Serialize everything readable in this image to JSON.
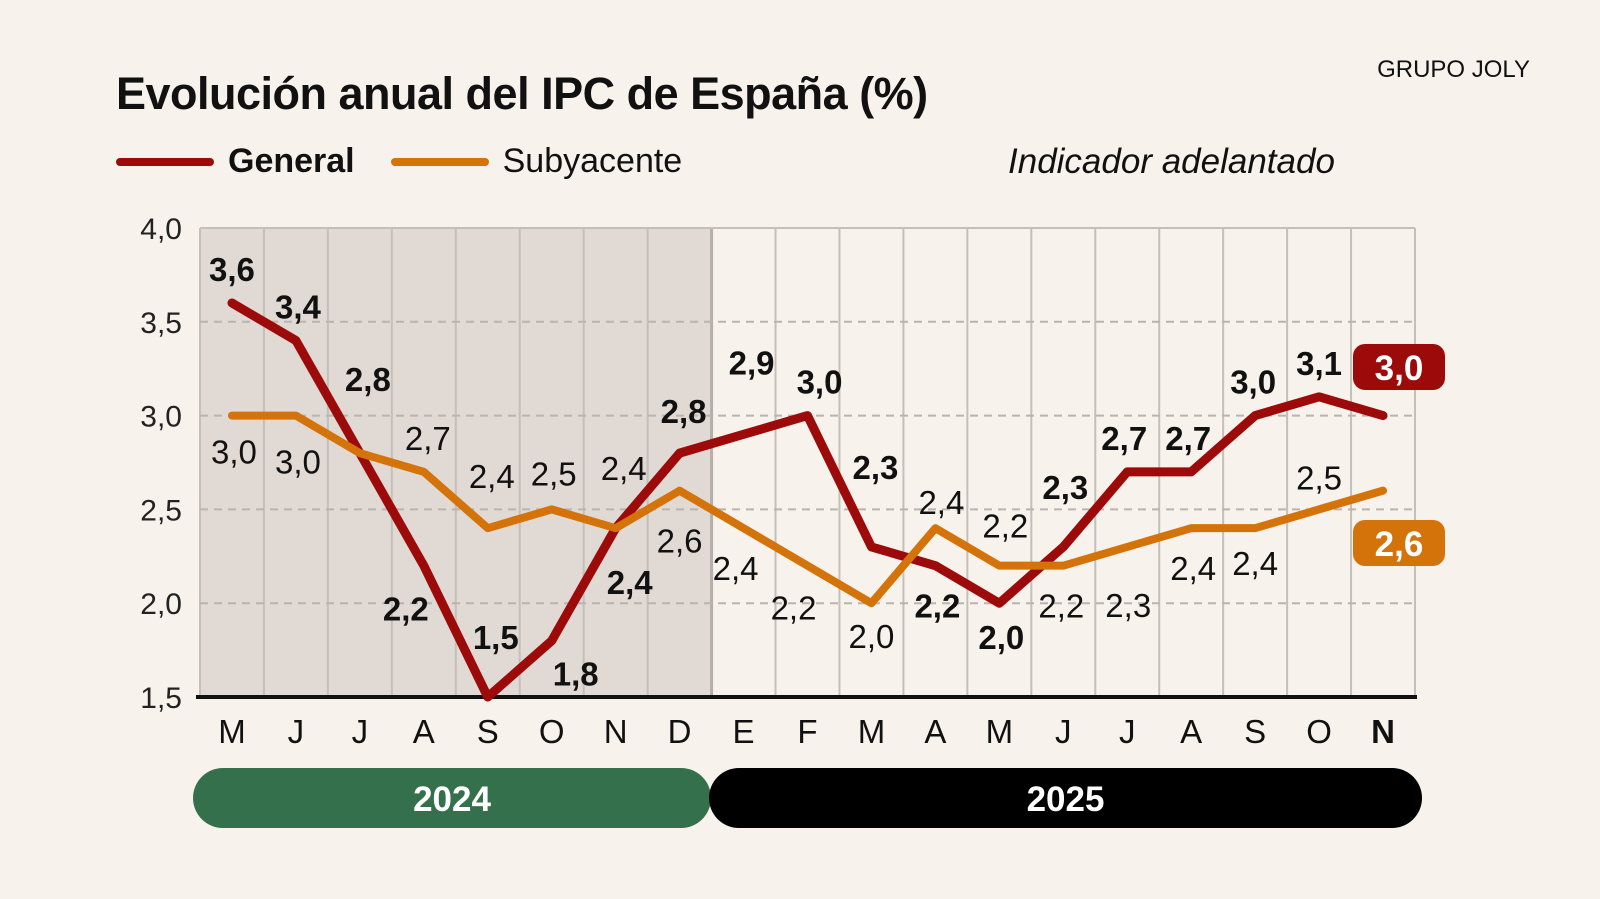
{
  "header": {
    "title": "Evolución anual del IPC de España (%)",
    "brand": "GRUPO JOLY",
    "note": "Indicador adelantado"
  },
  "colors": {
    "general": "#9c0a0a",
    "subyacente": "#d4730a",
    "shade": "#e0d9d4",
    "bg": "#f8f2ec",
    "year2024": "#34704c",
    "year2025": "#000000"
  },
  "chart_data": {
    "type": "line",
    "title": "Evolución anual del IPC de España (%)",
    "categories": [
      "M",
      "J",
      "J",
      "A",
      "S",
      "O",
      "N",
      "D",
      "E",
      "F",
      "M",
      "A",
      "M",
      "J",
      "J",
      "A",
      "S",
      "O",
      "N"
    ],
    "years": [
      {
        "label": "2024",
        "span": 8
      },
      {
        "label": "2025",
        "span": 11
      }
    ],
    "yticks": [
      "1,5",
      "2,0",
      "2,5",
      "3,0",
      "3,5",
      "4,0"
    ],
    "ylim": [
      1.5,
      4.0
    ],
    "grid": true,
    "legend": "top-left",
    "series": [
      {
        "name": "General",
        "values": [
          3.6,
          3.4,
          2.8,
          2.2,
          1.5,
          1.8,
          2.4,
          2.8,
          2.9,
          3.0,
          2.3,
          2.2,
          2.0,
          2.3,
          2.7,
          2.7,
          3.0,
          3.1,
          3.0
        ],
        "labels": [
          "3,6",
          "3,4",
          "2,8",
          "2,2",
          "1,5",
          "1,8",
          "2,4",
          "2,8",
          "2,9",
          "3,0",
          "2,3",
          "2,2",
          "2,0",
          "2,3",
          "2,7",
          "2,7",
          "3,0",
          "3,1",
          "3,0"
        ]
      },
      {
        "name": "Subyacente",
        "values": [
          3.0,
          3.0,
          2.8,
          2.7,
          2.4,
          2.5,
          2.4,
          2.6,
          2.4,
          2.2,
          2.0,
          2.4,
          2.2,
          2.2,
          2.3,
          2.4,
          2.4,
          2.5,
          2.6
        ],
        "labels": [
          "3,0",
          "3,0",
          null,
          "2,7",
          "2,4",
          "2,5",
          "2,4",
          "2,6",
          "2,4",
          "2,2",
          "2,0",
          "2,4",
          "2,2",
          "2,2",
          "2,3",
          "2,4",
          "2,4",
          "2,5",
          "2,6"
        ]
      }
    ]
  }
}
